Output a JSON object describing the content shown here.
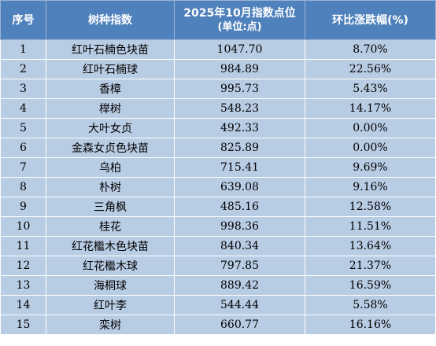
{
  "table": {
    "headers": {
      "index": "序号",
      "species": "树种指数",
      "value_line1": "2025年10月指数点位",
      "value_line2": "(单位:点)",
      "change": "环比涨跌幅(%)"
    },
    "rows": [
      {
        "no": "1",
        "name": "红叶石楠色块苗",
        "value": "1047.70",
        "change": "8.70%"
      },
      {
        "no": "2",
        "name": "红叶石楠球",
        "value": "984.89",
        "change": "22.56%"
      },
      {
        "no": "3",
        "name": "香樟",
        "value": "995.73",
        "change": "5.43%"
      },
      {
        "no": "4",
        "name": "榉树",
        "value": "548.23",
        "change": "14.17%"
      },
      {
        "no": "5",
        "name": "大叶女贞",
        "value": "492.33",
        "change": "0.00%"
      },
      {
        "no": "6",
        "name": "金森女贞色块苗",
        "value": "825.89",
        "change": "0.00%"
      },
      {
        "no": "7",
        "name": "乌柏",
        "value": "715.41",
        "change": "9.69%"
      },
      {
        "no": "8",
        "name": "朴树",
        "value": "639.08",
        "change": "9.16%"
      },
      {
        "no": "9",
        "name": "三角枫",
        "value": "485.16",
        "change": "12.58%"
      },
      {
        "no": "10",
        "name": "桂花",
        "value": "998.36",
        "change": "11.51%"
      },
      {
        "no": "11",
        "name": "红花檵木色块苗",
        "value": "840.34",
        "change": "13.64%"
      },
      {
        "no": "12",
        "name": "红花檵木球",
        "value": "797.85",
        "change": "21.37%"
      },
      {
        "no": "13",
        "name": "海桐球",
        "value": "889.42",
        "change": "16.59%"
      },
      {
        "no": "14",
        "name": "红叶李",
        "value": "544.44",
        "change": "5.58%"
      },
      {
        "no": "15",
        "name": "栾树",
        "value": "660.77",
        "change": "16.16%"
      }
    ]
  },
  "colors": {
    "header_bg": "#4f81bd",
    "cell_bg": "#b8cce4"
  }
}
